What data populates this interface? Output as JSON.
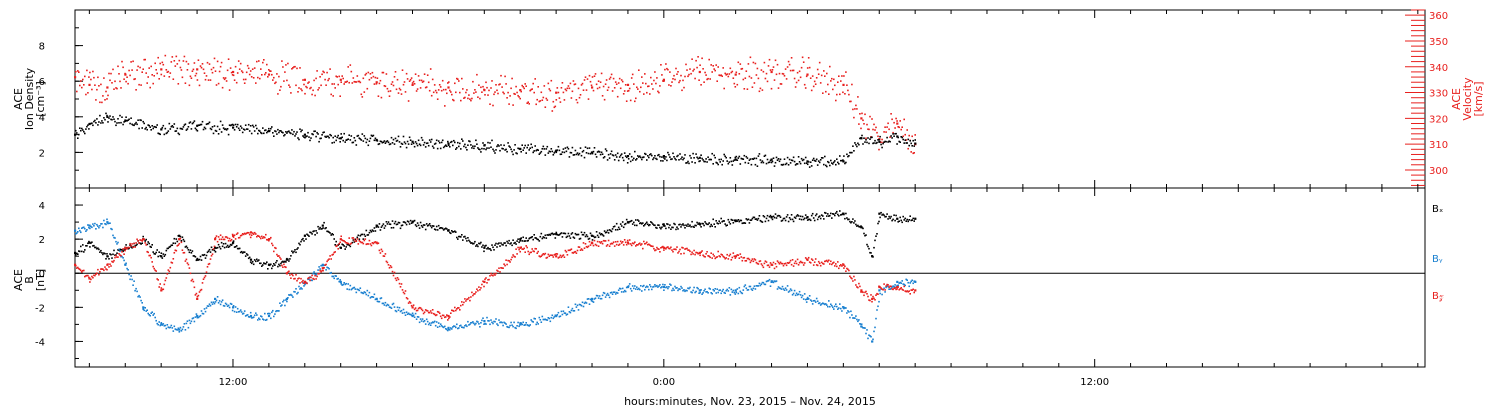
{
  "figure": {
    "xlabel": "hours:minutes, Nov. 23, 2015 – Nov. 24, 2015",
    "x_ticks": [
      "12:00",
      "0:00",
      "12:00"
    ]
  },
  "colors": {
    "black": "#000000",
    "red": "#e8201e",
    "blue": "#1a80d0"
  },
  "chart_data": [
    {
      "type": "scatter",
      "panel": "top",
      "x_unit": "hours since 2015-11-23 00:00",
      "xlim": [
        7.6,
        45.2
      ],
      "y_left": {
        "label_lines": [
          "ACE",
          "Ion Density",
          "[cm⁻³]"
        ],
        "ylim": [
          0,
          10
        ],
        "ticks": [
          2,
          4,
          6,
          8
        ]
      },
      "y_right": {
        "label_lines": [
          "ACE",
          "Velocity",
          "[km/s]"
        ],
        "ylim": [
          293,
          362
        ],
        "ticks": [
          300,
          310,
          320,
          330,
          340,
          350,
          360
        ]
      },
      "series": [
        {
          "axis": "left",
          "color": "#000000",
          "x": [
            7.6,
            8.0,
            8.5,
            9.0,
            10.0,
            11.0,
            12.0,
            13.0,
            14.0,
            15.0,
            16.0,
            17.0,
            18.0,
            19.0,
            20.0,
            21.0,
            22.0,
            23.0,
            24.0,
            25.0,
            26.0,
            27.0,
            28.0,
            29.0,
            29.5,
            30.0,
            30.5,
            31.0
          ],
          "y": [
            3.0,
            3.6,
            4.0,
            3.8,
            3.3,
            3.5,
            3.4,
            3.2,
            3.0,
            2.8,
            2.7,
            2.6,
            2.5,
            2.4,
            2.2,
            2.1,
            2.0,
            1.8,
            1.8,
            1.7,
            1.6,
            1.6,
            1.5,
            1.5,
            2.8,
            2.6,
            2.9,
            2.5
          ]
        },
        {
          "axis": "right",
          "color": "#e8201e",
          "x": [
            7.6,
            8.0,
            8.5,
            9.0,
            10.0,
            11.0,
            12.0,
            13.0,
            14.0,
            15.0,
            16.0,
            17.0,
            18.0,
            19.0,
            20.0,
            21.0,
            22.0,
            23.0,
            24.0,
            25.0,
            26.0,
            27.0,
            28.0,
            29.0,
            29.5,
            30.0,
            30.5,
            31.0
          ],
          "y": [
            336,
            333,
            332,
            337,
            339,
            339,
            338,
            337,
            335,
            335,
            334,
            333,
            332,
            331,
            331,
            330,
            332,
            333,
            335,
            338,
            337,
            338,
            337,
            333,
            320,
            312,
            318,
            310
          ]
        }
      ]
    },
    {
      "type": "scatter",
      "panel": "bottom",
      "x_unit": "hours since 2015-11-23 00:00",
      "xlim": [
        7.6,
        45.2
      ],
      "y_left": {
        "label_lines": [
          "ACE",
          "B",
          "[nT]"
        ],
        "ylim": [
          -5.5,
          5
        ],
        "ticks": [
          -4,
          -2,
          0,
          2,
          4
        ]
      },
      "legend": [
        "Bₓ",
        "Bᵧ",
        "B𝓏"
      ],
      "series": [
        {
          "name": "Bₓ",
          "color": "#000000",
          "x": [
            7.6,
            8.0,
            8.5,
            9.0,
            9.5,
            10.0,
            10.5,
            11.0,
            11.5,
            12.0,
            12.5,
            13.0,
            13.5,
            14.0,
            14.5,
            15.0,
            16.0,
            17.0,
            18.0,
            19.0,
            20.0,
            21.0,
            22.0,
            23.0,
            24.0,
            25.0,
            26.0,
            27.0,
            28.0,
            29.0,
            29.5,
            29.8,
            30.0,
            30.5,
            31.0
          ],
          "y": [
            1.2,
            1.8,
            1.0,
            1.5,
            2.0,
            1.0,
            2.2,
            0.8,
            1.5,
            1.8,
            0.8,
            0.5,
            0.8,
            2.2,
            2.8,
            1.5,
            2.8,
            3.0,
            2.5,
            1.5,
            2.0,
            2.3,
            2.2,
            3.0,
            2.8,
            2.9,
            3.1,
            3.3,
            3.3,
            3.5,
            2.7,
            1.0,
            3.5,
            3.2,
            3.2
          ]
        },
        {
          "name": "Bᵧ",
          "color": "#1a80d0",
          "x": [
            7.6,
            8.0,
            8.5,
            9.0,
            9.5,
            10.0,
            10.5,
            11.0,
            11.5,
            12.0,
            12.5,
            13.0,
            13.5,
            14.0,
            14.5,
            15.0,
            16.0,
            17.0,
            18.0,
            19.0,
            20.0,
            21.0,
            22.0,
            23.0,
            24.0,
            25.0,
            26.0,
            27.0,
            28.0,
            29.0,
            29.5,
            29.8,
            30.0,
            30.5,
            31.0
          ],
          "y": [
            2.5,
            2.8,
            3.0,
            0.5,
            -2.0,
            -3.0,
            -3.3,
            -2.5,
            -1.5,
            -2.0,
            -2.5,
            -2.5,
            -1.5,
            -0.5,
            0.5,
            -0.5,
            -1.5,
            -2.5,
            -3.2,
            -2.8,
            -3.0,
            -2.5,
            -1.5,
            -0.8,
            -0.8,
            -1.0,
            -1.0,
            -0.5,
            -1.5,
            -2.0,
            -3.0,
            -4.0,
            -1.0,
            -0.5,
            -0.5
          ]
        },
        {
          "name": "B𝓏",
          "color": "#e8201e",
          "x": [
            7.6,
            8.0,
            8.5,
            9.0,
            9.5,
            10.0,
            10.5,
            11.0,
            11.5,
            12.0,
            12.5,
            13.0,
            13.5,
            14.0,
            14.5,
            15.0,
            16.0,
            17.0,
            18.0,
            19.0,
            20.0,
            21.0,
            22.0,
            23.0,
            24.0,
            25.0,
            26.0,
            27.0,
            28.0,
            29.0,
            29.5,
            29.8,
            30.0,
            30.5,
            31.0
          ],
          "y": [
            0.5,
            -0.3,
            0.5,
            1.5,
            2.0,
            -1.0,
            2.0,
            -1.5,
            2.0,
            2.2,
            2.4,
            2.0,
            0.0,
            -0.5,
            0.3,
            2.0,
            1.8,
            -2.0,
            -2.5,
            -0.5,
            1.5,
            1.0,
            1.8,
            1.8,
            1.5,
            1.2,
            1.0,
            0.5,
            0.8,
            0.5,
            -1.0,
            -1.5,
            -0.8,
            -0.8,
            -1.0
          ]
        }
      ]
    }
  ]
}
